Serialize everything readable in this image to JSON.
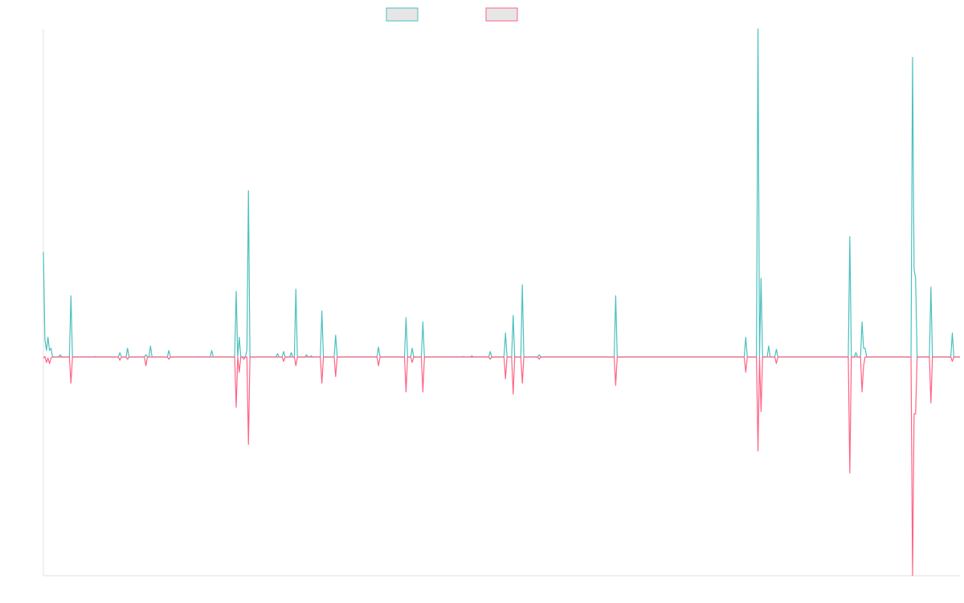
{
  "chart_data": {
    "type": "line",
    "title": "",
    "xlabel": "",
    "ylabel": "",
    "x_count": 500,
    "ylim": [
      -10,
      15
    ],
    "grid": false,
    "legend": "top-center",
    "baseline": 0,
    "colors": {
      "teal": "#4bc0c0",
      "pink": "#ff6384",
      "legend_fill": "#e6e6e6",
      "axis": "#e0e0e0"
    },
    "series": [
      {
        "color": "#4bc0c0",
        "spikes": [
          [
            0,
            4.8
          ],
          [
            1,
            0.8
          ],
          [
            2,
            0.3
          ],
          [
            3,
            0.9
          ],
          [
            4,
            0.3
          ],
          [
            5,
            0.4
          ],
          [
            11,
            0.1
          ],
          [
            18,
            2.8
          ],
          [
            34,
            0.02
          ],
          [
            50,
            0.2
          ],
          [
            55,
            0.4
          ],
          [
            67,
            0.1
          ],
          [
            70,
            0.5
          ],
          [
            82,
            0.3
          ],
          [
            90,
            0.01
          ],
          [
            102,
            0.01
          ],
          [
            110,
            0.3
          ],
          [
            126,
            3.0
          ],
          [
            128,
            0.9
          ],
          [
            133,
            0.3
          ],
          [
            134,
            7.6
          ],
          [
            153,
            0.15
          ],
          [
            157,
            0.25
          ],
          [
            162,
            0.2
          ],
          [
            165,
            3.1
          ],
          [
            172,
            0.1
          ],
          [
            175,
            0.05
          ],
          [
            182,
            2.1
          ],
          [
            191,
            1.0
          ],
          [
            209,
            0.01
          ],
          [
            219,
            0.45
          ],
          [
            237,
            1.8
          ],
          [
            241,
            0.4
          ],
          [
            248,
            1.6
          ],
          [
            274,
            0.02
          ],
          [
            280,
            0.05
          ],
          [
            292,
            0.25
          ],
          [
            302,
            1.1
          ],
          [
            307,
            1.9
          ],
          [
            313,
            3.3
          ],
          [
            324,
            0.1
          ],
          [
            374,
            2.8
          ],
          [
            459,
            0.9
          ],
          [
            467,
            15.0
          ],
          [
            469,
            3.6
          ],
          [
            474,
            0.5
          ],
          [
            479,
            0.35
          ],
          [
            527,
            5.5
          ],
          [
            531,
            0.2
          ],
          [
            535,
            1.6
          ],
          [
            536,
            0.4
          ],
          [
            537,
            0.4
          ],
          [
            568,
            13.7
          ],
          [
            569,
            4.0
          ],
          [
            570,
            3.6
          ],
          [
            580,
            3.2
          ],
          [
            594,
            1.1
          ]
        ]
      },
      {
        "color": "#ff6384",
        "spikes": [
          [
            0,
            -0.05
          ],
          [
            1,
            0.02
          ],
          [
            2,
            -0.25
          ],
          [
            3,
            -0.05
          ],
          [
            4,
            -0.3
          ],
          [
            5,
            -0.05
          ],
          [
            18,
            -1.2
          ],
          [
            50,
            -0.15
          ],
          [
            55,
            -0.1
          ],
          [
            67,
            -0.4
          ],
          [
            82,
            -0.1
          ],
          [
            126,
            -2.3
          ],
          [
            128,
            -0.7
          ],
          [
            131,
            -0.1
          ],
          [
            134,
            -4.0
          ],
          [
            157,
            -0.2
          ],
          [
            165,
            -0.4
          ],
          [
            182,
            -1.2
          ],
          [
            191,
            -0.9
          ],
          [
            219,
            -0.4
          ],
          [
            237,
            -1.6
          ],
          [
            241,
            -0.25
          ],
          [
            248,
            -1.6
          ],
          [
            292,
            -0.1
          ],
          [
            302,
            -1.0
          ],
          [
            307,
            -1.7
          ],
          [
            313,
            -1.2
          ],
          [
            324,
            -0.1
          ],
          [
            374,
            -1.3
          ],
          [
            459,
            -0.7
          ],
          [
            467,
            -4.3
          ],
          [
            469,
            -2.5
          ],
          [
            479,
            -0.3
          ],
          [
            527,
            -5.3
          ],
          [
            535,
            -1.6
          ],
          [
            536,
            -0.4
          ],
          [
            568,
            -10.0
          ],
          [
            569,
            -2.6
          ],
          [
            570,
            -2.6
          ],
          [
            580,
            -2.1
          ],
          [
            594,
            -0.2
          ]
        ]
      }
    ]
  }
}
